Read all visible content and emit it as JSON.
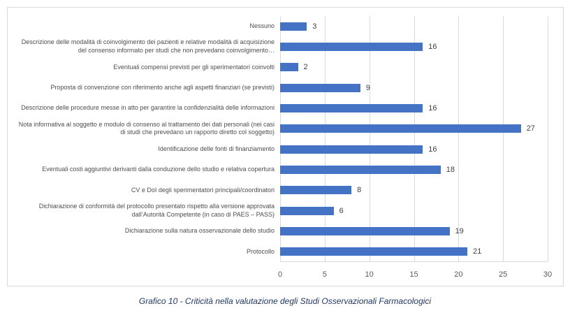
{
  "chart_data": {
    "type": "bar",
    "orientation": "horizontal",
    "title": "",
    "xlabel": "",
    "ylabel": "",
    "xlim": [
      0,
      30
    ],
    "xticks": [
      0,
      5,
      10,
      15,
      20,
      25,
      30
    ],
    "grid": true,
    "legend": false,
    "bar_color": "#4472C4",
    "gridline_color": "#D9D9D9",
    "data_labels": true,
    "categories": [
      "Nessuno",
      "Descrizione delle modalità di coinvolgimento dei pazienti e relative modalità di acquisizione del consenso informato per studi che non prevedano coinvolgimento…",
      "Eventuali compensi previsti per gli sperimentatori coinvolti",
      "Proposta di convenzione con riferimento anche agli aspetti finanziari (se previsti)",
      "Descrizione delle procedure messe in atto per garantire la confidenzialità delle informazioni",
      "Nota informativa al soggetto e modulo di consenso al trattamento dei dati personali (nei casi di studi che prevedano un rapporto diretto col soggetto)",
      "Identificazione delle fonti di finanziamento",
      "Eventuali costi aggiuntivi derivanti dalla conduzione dello studio e relativa copertura",
      "CV e DoI degli sperimentatori principali/coordinatori",
      "Dichiarazione di conformità del protocollo presentato rispetto alla versione approvata dall’Autorità Competente (in caso di PAES – PASS)",
      "Dichiarazione sulla natura osservazionale dello studio",
      "Protocollo"
    ],
    "values": [
      3,
      16,
      2,
      9,
      16,
      27,
      16,
      18,
      8,
      6,
      19,
      21
    ]
  },
  "caption": "Grafico 10 - Criticità nella valutazione degli Studi Osservazionali Farmacologici"
}
